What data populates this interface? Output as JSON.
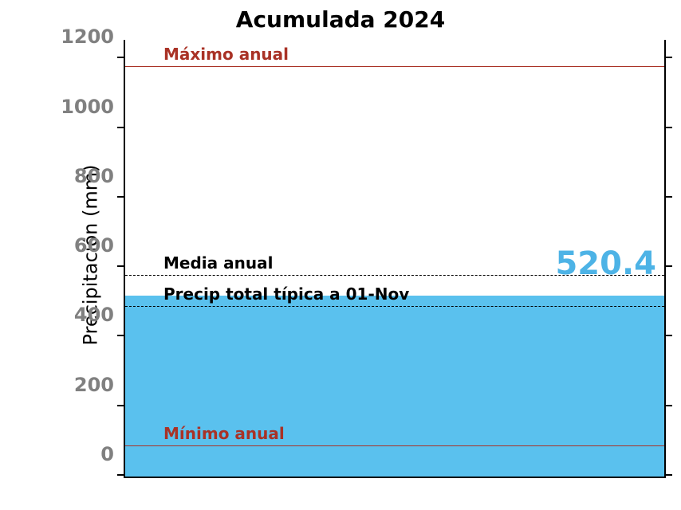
{
  "chart": {
    "type": "area",
    "title": "Acumulada 2024",
    "title_fontsize": 28,
    "ylabel": "Precipitación (mm)",
    "ylabel_fontsize": 24,
    "background_color": "#ffffff",
    "axis_color": "#000000",
    "tick_label_color": "#808080",
    "tick_label_fontsize": 24,
    "ylim": [
      0,
      1260
    ],
    "yticks": [
      0,
      200,
      400,
      600,
      800,
      1000,
      1200
    ],
    "current_value": 520.4,
    "value_label": "520.4",
    "value_label_color": "#4db3e6",
    "value_label_fontsize": 40,
    "fill_color": "#5ac1ee",
    "reference_lines": [
      {
        "id": "max",
        "value": 1177,
        "label": "Máximo anual",
        "color": "#a93226",
        "style": "solid",
        "width": 1,
        "label_color": "#a93226",
        "label_fontsize": 20
      },
      {
        "id": "media",
        "value": 577,
        "label": "Media anual",
        "color": "#000000",
        "style": "dashed",
        "width": 1,
        "label_color": "#000000",
        "label_fontsize": 20
      },
      {
        "id": "typical",
        "value": 487,
        "label": "Precip total típica a 01-Nov",
        "color": "#000000",
        "style": "dashed",
        "width": 1,
        "label_color": "#000000",
        "label_fontsize": 20
      },
      {
        "id": "min",
        "value": 87,
        "label": "Mínimo anual",
        "color": "#a93226",
        "style": "solid",
        "width": 1,
        "label_color": "#a93226",
        "label_fontsize": 20
      }
    ]
  }
}
